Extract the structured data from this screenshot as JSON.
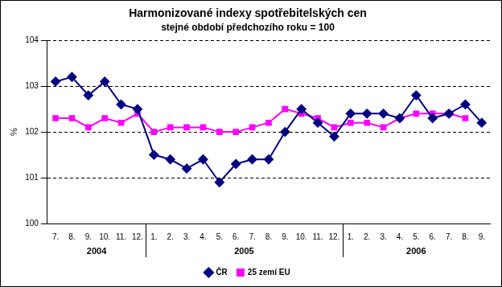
{
  "chart_data": {
    "type": "line",
    "title": "Harmonizované indexy spotřebitelských cen",
    "subtitle": "stejné období předchozího roku = 100",
    "y_label": "%",
    "categories": [
      "7.",
      "8.",
      "9.",
      "10.",
      "11.",
      "12.",
      "1.",
      "2.",
      "3.",
      "4.",
      "5.",
      "6.",
      "7.",
      "8.",
      "9.",
      "10.",
      "11.",
      "12.",
      "1.",
      "2.",
      "3.",
      "4.",
      "5.",
      "6.",
      "7.",
      "8.",
      "9."
    ],
    "x_groups": [
      {
        "label": "2004",
        "count": 6
      },
      {
        "label": "2005",
        "count": 12
      },
      {
        "label": "2006",
        "count": 9
      }
    ],
    "series": [
      {
        "name": "ČR",
        "color": "#000080",
        "marker": "diamond",
        "line_style": "solid",
        "values": [
          103.1,
          103.2,
          102.8,
          103.1,
          102.6,
          102.5,
          101.5,
          101.4,
          101.2,
          101.4,
          100.9,
          101.3,
          101.4,
          101.4,
          102.0,
          102.5,
          102.2,
          101.9,
          102.4,
          102.4,
          102.4,
          102.3,
          102.8,
          102.3,
          102.4,
          102.6,
          102.2
        ]
      },
      {
        "name": "25 zemí EU",
        "color": "#FF00FF",
        "marker": "square",
        "line_style": "solid",
        "values": [
          102.3,
          102.3,
          102.1,
          102.3,
          102.2,
          102.4,
          102.0,
          102.1,
          102.1,
          102.1,
          102.0,
          102.0,
          102.1,
          102.2,
          102.5,
          102.4,
          102.3,
          102.1,
          102.2,
          102.2,
          102.1,
          102.3,
          102.4,
          102.4,
          102.4,
          102.3,
          null
        ]
      }
    ],
    "ylim": [
      100,
      104
    ],
    "yticks": [
      100,
      101,
      102,
      103,
      104
    ],
    "grid": true,
    "legend": "bottom"
  }
}
